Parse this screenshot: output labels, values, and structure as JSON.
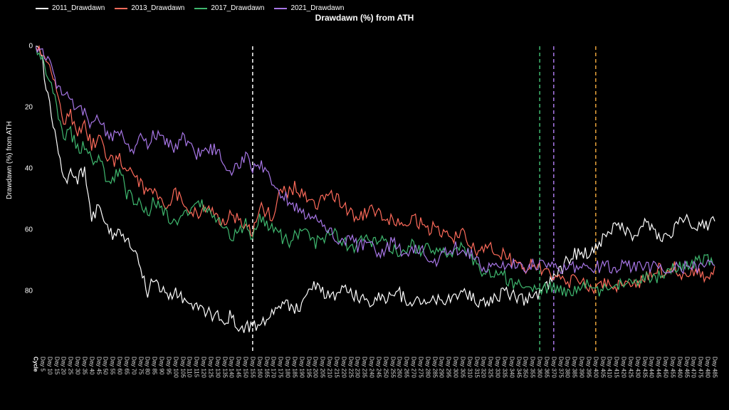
{
  "title": "Drawdawn (%) from ATH",
  "ylabel": "Drawdawn (%) from ATH",
  "background_color": "#000000",
  "text_color": "#ffffff",
  "legend": [
    {
      "label": "2011_Drawdawn",
      "color": "#ffffff"
    },
    {
      "label": "2013_Drawdawn",
      "color": "#ff6b5b"
    },
    {
      "label": "2017_Drawdawn",
      "color": "#3fb86f"
    },
    {
      "label": "2021_Drawdawn",
      "color": "#a776e6"
    }
  ],
  "chart": {
    "type": "line",
    "x_count": 98,
    "xlim": [
      0,
      97
    ],
    "ylim_top": 0,
    "ylim_bottom": 100,
    "yticks": [
      0,
      20,
      40,
      60,
      80
    ],
    "xtick_first_label": "Cycle",
    "xtick_step": 5,
    "line_width": 1.2,
    "dash_pattern": "5 4",
    "vertical_lines": [
      {
        "x": 31,
        "color": "#ffffff"
      },
      {
        "x": 72,
        "color": "#3fb86f"
      },
      {
        "x": 74,
        "color": "#a776e6"
      },
      {
        "x": 80,
        "color": "#e8a23c"
      }
    ],
    "series": [
      {
        "name": "2011_Drawdawn",
        "color": "#ffffff",
        "values": [
          0,
          5,
          20,
          32,
          44,
          42,
          43,
          41,
          58,
          50,
          57,
          62,
          60,
          64,
          67,
          72,
          80,
          76,
          79,
          81,
          80,
          83,
          85,
          84,
          86,
          88,
          87,
          89,
          88,
          91,
          92,
          92,
          90,
          89,
          87,
          85,
          84,
          86,
          85,
          78,
          79,
          80,
          82,
          81,
          78,
          80,
          82,
          83,
          84,
          82,
          83,
          82,
          81,
          83,
          84,
          83,
          83,
          82,
          83,
          83,
          82,
          81,
          82,
          83,
          84,
          83,
          82,
          80,
          81,
          82,
          83,
          82,
          80,
          78,
          75,
          73,
          70,
          68,
          67,
          68,
          66,
          63,
          60,
          59,
          60,
          62,
          63,
          58,
          59,
          62,
          63,
          60,
          58,
          57,
          58,
          59,
          58,
          57
        ]
      },
      {
        "name": "2013_Drawdawn",
        "color": "#ff6b5b",
        "values": [
          0,
          2,
          8,
          15,
          24,
          22,
          28,
          26,
          32,
          30,
          35,
          38,
          36,
          40,
          42,
          45,
          48,
          46,
          50,
          52,
          48,
          50,
          53,
          55,
          52,
          54,
          56,
          58,
          55,
          57,
          59,
          60,
          52,
          54,
          56,
          47,
          48,
          46,
          48,
          50,
          52,
          50,
          48,
          50,
          52,
          54,
          56,
          55,
          53,
          55,
          58,
          56,
          58,
          57,
          56,
          58,
          60,
          59,
          61,
          63,
          62,
          60,
          64,
          68,
          67,
          66,
          68,
          67,
          70,
          72,
          73,
          70,
          72,
          74,
          75,
          77,
          78,
          75,
          77,
          79,
          80,
          78,
          77,
          78,
          79,
          77,
          78,
          76,
          75,
          73,
          74,
          72,
          74,
          75,
          73,
          74,
          76,
          74
        ]
      },
      {
        "name": "2017_Drawdawn",
        "color": "#3fb86f",
        "values": [
          0,
          3,
          12,
          20,
          30,
          28,
          34,
          32,
          38,
          36,
          42,
          44,
          40,
          48,
          50,
          52,
          55,
          50,
          53,
          56,
          58,
          54,
          55,
          50,
          52,
          54,
          56,
          60,
          62,
          60,
          58,
          62,
          56,
          58,
          60,
          62,
          64,
          62,
          60,
          62,
          64,
          63,
          60,
          62,
          64,
          66,
          65,
          63,
          64,
          62,
          64,
          66,
          68,
          66,
          65,
          67,
          66,
          68,
          67,
          68,
          66,
          65,
          68,
          72,
          75,
          74,
          73,
          75,
          78,
          77,
          80,
          78,
          80,
          79,
          78,
          80,
          81,
          80,
          79,
          78,
          79,
          80,
          79,
          78,
          78,
          77,
          77,
          76,
          76,
          75,
          74,
          73,
          72,
          71,
          71,
          70,
          70,
          70
        ]
      },
      {
        "name": "2021_Drawdawn",
        "color": "#a776e6",
        "values": [
          0,
          1,
          5,
          12,
          18,
          16,
          22,
          20,
          26,
          24,
          28,
          30,
          27,
          32,
          34,
          30,
          33,
          28,
          30,
          32,
          34,
          30,
          32,
          35,
          36,
          33,
          35,
          38,
          42,
          38,
          36,
          40,
          38,
          42,
          45,
          48,
          50,
          52,
          54,
          56,
          55,
          58,
          60,
          62,
          64,
          62,
          66,
          64,
          66,
          68,
          66,
          64,
          66,
          68,
          67,
          66,
          68,
          70,
          69,
          67,
          66,
          67,
          68,
          70,
          73,
          72,
          70,
          72,
          71,
          70,
          72,
          71,
          72,
          72,
          72,
          72,
          72,
          72,
          72,
          72,
          72,
          72,
          72,
          72,
          72,
          72,
          72,
          72,
          72,
          72,
          72,
          72,
          72,
          72,
          72,
          72,
          72,
          72
        ]
      }
    ]
  }
}
